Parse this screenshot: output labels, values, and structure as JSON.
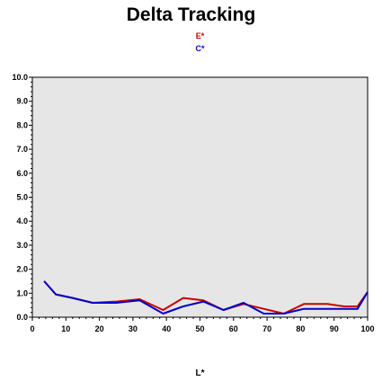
{
  "chart_data": {
    "type": "line",
    "title": "Delta Tracking",
    "xlabel": "L*",
    "ylabel": "",
    "xlim": [
      0,
      100
    ],
    "ylim": [
      0,
      10
    ],
    "xticks": [
      0,
      10,
      20,
      30,
      40,
      50,
      60,
      70,
      80,
      90,
      100
    ],
    "xtick_labels": [
      "0",
      "10",
      "20",
      "30",
      "40",
      "50",
      "60",
      "70",
      "80",
      "90",
      "100"
    ],
    "yticks": [
      0,
      1,
      2,
      3,
      4,
      5,
      6,
      7,
      8,
      9,
      10
    ],
    "ytick_labels": [
      "0.0",
      "1.0",
      "2.0",
      "3.0",
      "4.0",
      "5.0",
      "6.0",
      "7.0",
      "8.0",
      "9.0",
      "10.0"
    ],
    "grid": false,
    "legend_position": "top-center",
    "background_color": "#e6e6e6",
    "x": [
      3.5,
      7,
      12,
      18,
      25,
      32,
      39,
      45,
      51,
      57,
      63,
      69,
      75,
      81,
      88,
      93,
      97,
      100
    ],
    "series": [
      {
        "name": "E*",
        "color": "#cc0000",
        "values": [
          1.5,
          0.95,
          0.8,
          0.6,
          0.65,
          0.75,
          0.3,
          0.8,
          0.7,
          0.3,
          0.55,
          0.35,
          0.15,
          0.55,
          0.55,
          0.45,
          0.45,
          1.05
        ]
      },
      {
        "name": "C*",
        "color": "#0000cc",
        "values": [
          1.5,
          0.95,
          0.8,
          0.6,
          0.6,
          0.7,
          0.15,
          0.45,
          0.65,
          0.3,
          0.6,
          0.15,
          0.15,
          0.35,
          0.35,
          0.35,
          0.35,
          1.05
        ]
      }
    ]
  }
}
